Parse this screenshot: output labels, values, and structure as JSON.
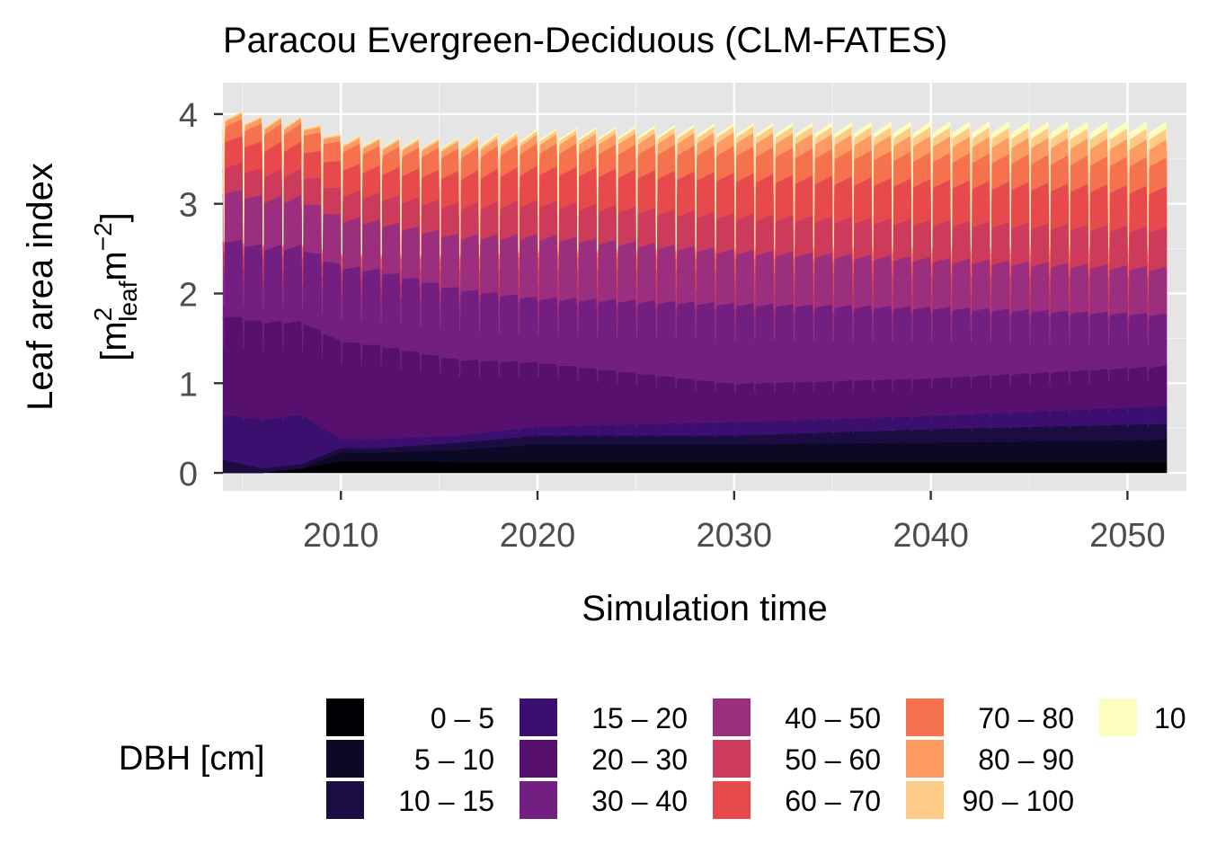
{
  "chart_data": {
    "type": "area",
    "stacked": true,
    "title": "Paracou Evergreen-Deciduous (CLM-FATES)",
    "xlabel": "Simulation time",
    "ylabel": "Leaf area index",
    "ylabel_units": {
      "open": "[m",
      "sup1": "2",
      "sub": "leaf",
      "mid": "m",
      "sup2": "−2",
      "close": "]"
    },
    "xlim": [
      2004.0,
      2053.0
    ],
    "ylim": [
      -0.2,
      4.35
    ],
    "x_ticks": [
      2010,
      2020,
      2030,
      2040,
      2050
    ],
    "y_ticks": [
      0,
      1,
      2,
      3,
      4
    ],
    "x_start": 2004.0,
    "x_end": 2052.0,
    "grid": true,
    "panel_background": "#e5e5e5",
    "legend": {
      "title": "DBH [cm]",
      "position": "bottom",
      "entries": [
        {
          "name": "0 – 5",
          "color": "#000004"
        },
        {
          "name": "5 – 10",
          "color": "#0c0926"
        },
        {
          "name": "10 – 15",
          "color": "#1b0c42"
        },
        {
          "name": "15 – 20",
          "color": "#3b0f70"
        },
        {
          "name": "20 – 30",
          "color": "#57106e"
        },
        {
          "name": "30 – 40",
          "color": "#721f81"
        },
        {
          "name": "40 – 50",
          "color": "#9c2e7f"
        },
        {
          "name": "50 – 60",
          "color": "#cc3a5c"
        },
        {
          "name": "60 – 70",
          "color": "#e8494d"
        },
        {
          "name": "70 – 80",
          "color": "#f6714e"
        },
        {
          "name": "80 – 90",
          "color": "#fc9a62"
        },
        {
          "name": "90 – 100",
          "color": "#fecb87"
        },
        {
          "name": "10",
          "color": "#fcfdbf"
        }
      ]
    },
    "series": [
      {
        "name": "0 – 5",
        "x": [
          2004,
          2006,
          2008,
          2010,
          2012,
          2016,
          2020,
          2030,
          2040,
          2052
        ],
        "values": [
          0.0,
          0.0,
          0.05,
          0.13,
          0.13,
          0.12,
          0.12,
          0.12,
          0.12,
          0.12
        ]
      },
      {
        "name": "5 – 10",
        "x": [
          2004,
          2006,
          2008,
          2010,
          2012,
          2016,
          2020,
          2030,
          2040,
          2052
        ],
        "values": [
          0.0,
          0.0,
          0.0,
          0.1,
          0.1,
          0.14,
          0.2,
          0.2,
          0.22,
          0.25
        ]
      },
      {
        "name": "10 – 15",
        "x": [
          2004,
          2006,
          2008,
          2010,
          2012,
          2016,
          2020,
          2030,
          2040,
          2052
        ],
        "values": [
          0.15,
          0.05,
          0.05,
          0.05,
          0.05,
          0.08,
          0.1,
          0.1,
          0.15,
          0.18
        ]
      },
      {
        "name": "15 – 20",
        "x": [
          2004,
          2006,
          2008,
          2010,
          2012,
          2016,
          2020,
          2030,
          2040,
          2052
        ],
        "values": [
          0.5,
          0.55,
          0.55,
          0.1,
          0.1,
          0.08,
          0.1,
          0.15,
          0.15,
          0.2
        ]
      },
      {
        "name": "20 – 30",
        "x": [
          2004,
          2006,
          2008,
          2010,
          2012,
          2016,
          2020,
          2030,
          2040,
          2052
        ],
        "values": [
          1.13,
          1.1,
          1.05,
          1.1,
          1.05,
          0.85,
          0.72,
          0.43,
          0.42,
          0.45
        ]
      },
      {
        "name": "30 – 40",
        "x": [
          2004,
          2006,
          2008,
          2010,
          2012,
          2016,
          2020,
          2030,
          2040,
          2052
        ],
        "values": [
          0.87,
          0.85,
          0.85,
          0.85,
          0.85,
          0.8,
          0.73,
          0.9,
          0.8,
          0.58
        ]
      },
      {
        "name": "40 – 50",
        "x": [
          2004,
          2006,
          2008,
          2010,
          2012,
          2016,
          2020,
          2030,
          2040,
          2052
        ],
        "values": [
          0.57,
          0.55,
          0.55,
          0.55,
          0.55,
          0.6,
          0.7,
          0.6,
          0.55,
          0.52
        ]
      },
      {
        "name": "50 – 60",
        "x": [
          2004,
          2006,
          2008,
          2010,
          2012,
          2016,
          2020,
          2030,
          2040,
          2052
        ],
        "values": [
          0.3,
          0.3,
          0.3,
          0.3,
          0.3,
          0.35,
          0.38,
          0.4,
          0.42,
          0.45
        ]
      },
      {
        "name": "60 – 70",
        "x": [
          2004,
          2006,
          2008,
          2010,
          2012,
          2016,
          2020,
          2030,
          2040,
          2052
        ],
        "values": [
          0.3,
          0.3,
          0.3,
          0.3,
          0.3,
          0.35,
          0.38,
          0.45,
          0.45,
          0.45
        ]
      },
      {
        "name": "70 – 80",
        "x": [
          2004,
          2006,
          2008,
          2010,
          2012,
          2016,
          2020,
          2030,
          2040,
          2052
        ],
        "values": [
          0.18,
          0.2,
          0.2,
          0.22,
          0.22,
          0.25,
          0.25,
          0.3,
          0.3,
          0.32
        ]
      },
      {
        "name": "80 – 90",
        "x": [
          2004,
          2006,
          2008,
          2010,
          2012,
          2016,
          2020,
          2030,
          2040,
          2052
        ],
        "values": [
          0.06,
          0.06,
          0.06,
          0.06,
          0.07,
          0.08,
          0.1,
          0.15,
          0.18,
          0.2
        ]
      },
      {
        "name": "90 – 100",
        "x": [
          2004,
          2006,
          2008,
          2010,
          2012,
          2016,
          2020,
          2030,
          2040,
          2052
        ],
        "values": [
          0.02,
          0.02,
          0.02,
          0.02,
          0.02,
          0.03,
          0.04,
          0.07,
          0.1,
          0.12
        ]
      },
      {
        "name": "10",
        "x": [
          2004,
          2006,
          2008,
          2010,
          2012,
          2016,
          2020,
          2030,
          2040,
          2052
        ],
        "values": [
          0.0,
          0.0,
          0.0,
          0.0,
          0.01,
          0.01,
          0.02,
          0.03,
          0.06,
          0.08
        ]
      }
    ]
  }
}
